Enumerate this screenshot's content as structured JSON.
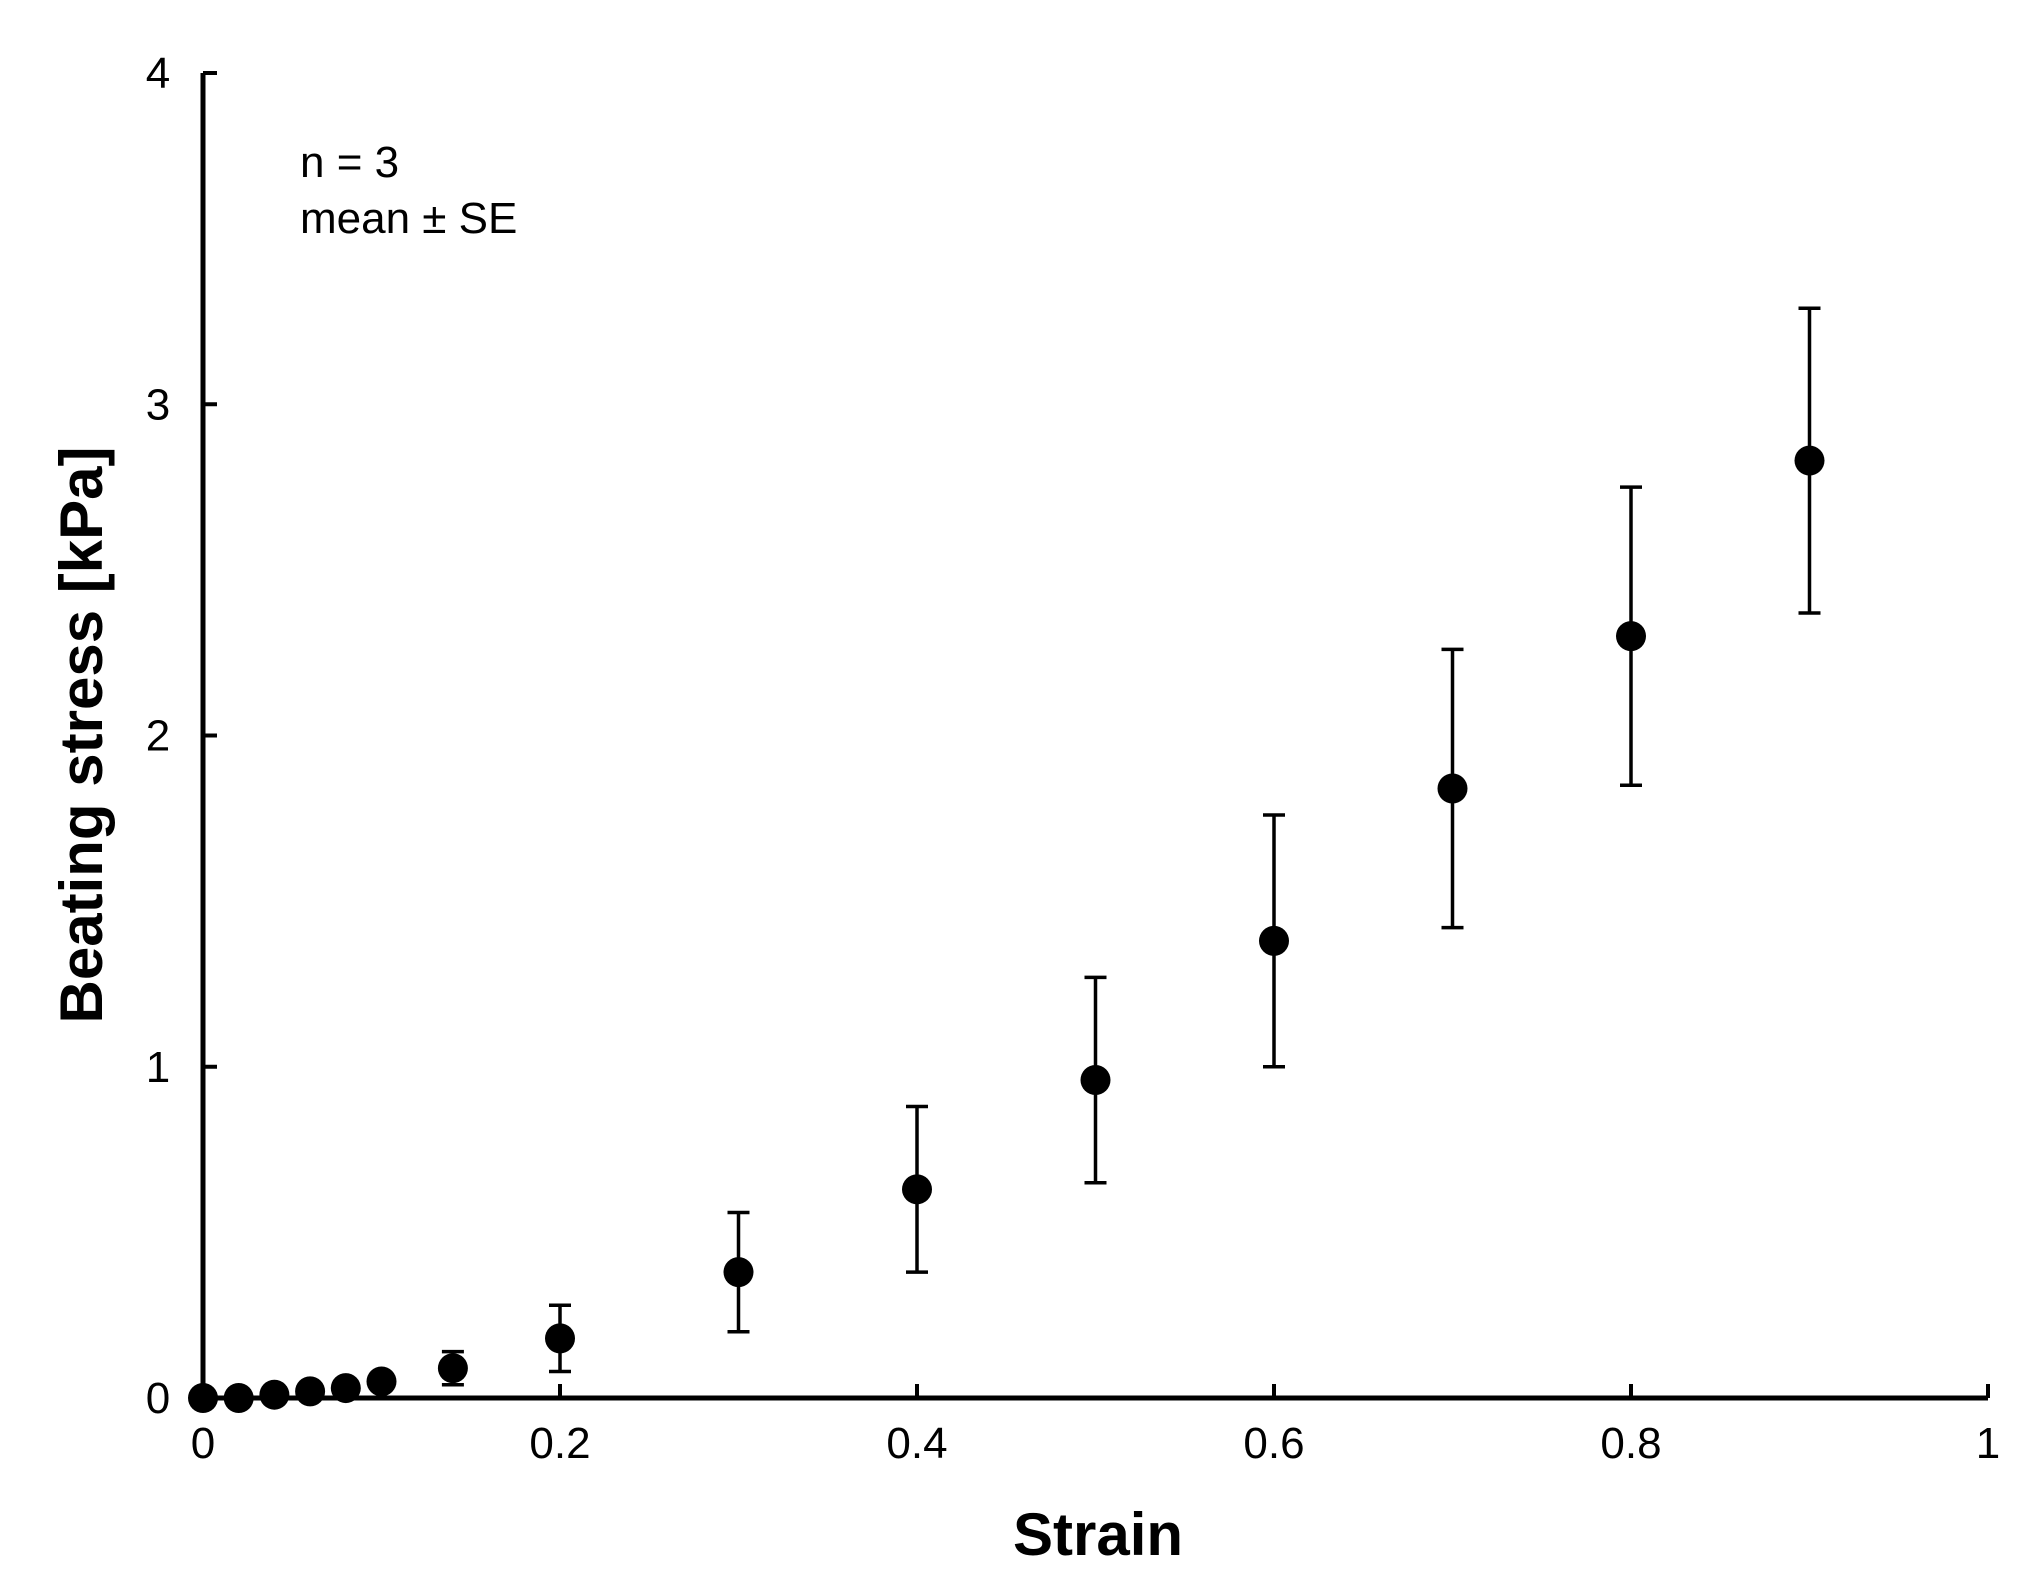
{
  "chart_data": {
    "type": "scatter",
    "title": "",
    "xlabel": "Strain",
    "ylabel": "Beating stress [kPa]",
    "xlim": [
      0,
      1
    ],
    "ylim": [
      0,
      4
    ],
    "x_ticks": [
      0,
      0.2,
      0.4,
      0.6,
      0.8,
      1
    ],
    "x_tick_labels": [
      "0",
      "0.2",
      "0.4",
      "0.6",
      "0.8",
      "1"
    ],
    "y_ticks": [
      0,
      1,
      2,
      3,
      4
    ],
    "y_tick_labels": [
      "0",
      "1",
      "2",
      "3",
      "4"
    ],
    "grid": false,
    "legend": "none",
    "annotations": [
      "n = 3",
      "mean ± SE"
    ],
    "marker_color": "#000000",
    "series": [
      {
        "x": [
          0,
          0.02,
          0.04,
          0.06,
          0.08,
          0.1,
          0.14,
          0.2,
          0.3,
          0.4,
          0.5,
          0.6,
          0.7,
          0.8,
          0.9
        ],
        "y": [
          0.0,
          0.0,
          0.01,
          0.02,
          0.03,
          0.05,
          0.09,
          0.18,
          0.38,
          0.63,
          0.96,
          1.38,
          1.84,
          2.3,
          2.83
        ],
        "error": [
          0.0,
          0.0,
          0.0,
          0.0,
          0.0,
          0.0,
          0.05,
          0.1,
          0.18,
          0.25,
          0.31,
          0.38,
          0.42,
          0.45,
          0.46
        ]
      }
    ]
  }
}
